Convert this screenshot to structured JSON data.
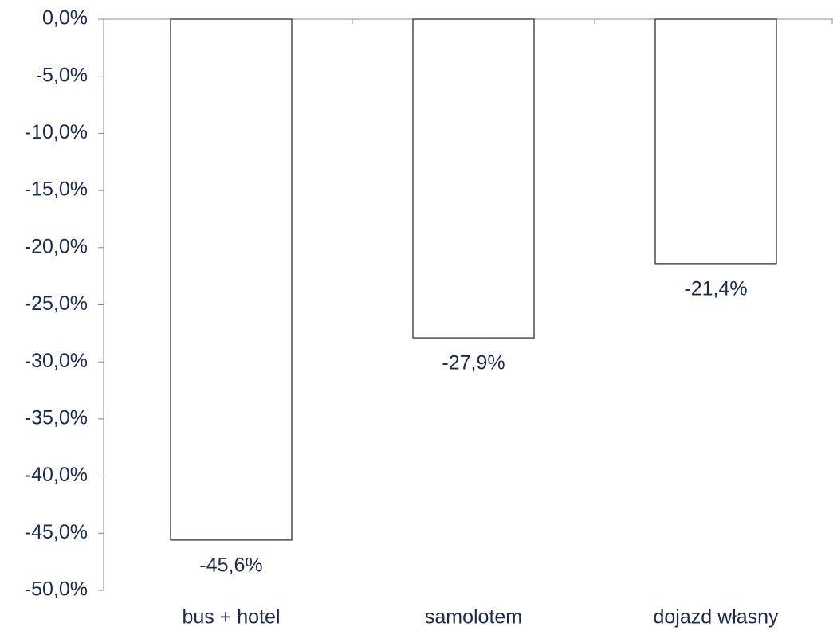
{
  "chart_data": {
    "type": "bar",
    "categories": [
      "bus + hotel",
      "samolotem",
      "dojazd własny"
    ],
    "values": [
      -45.6,
      -27.9,
      -21.4
    ],
    "value_labels": [
      "-45,6%",
      "-27,9%",
      "-21,4%"
    ],
    "color": "#ffffff",
    "ylim": [
      -50,
      0
    ],
    "yticks": [
      {
        "value": 0,
        "label": "0,0%"
      },
      {
        "value": -5,
        "label": "-5,0%"
      },
      {
        "value": -10,
        "label": "-10,0%"
      },
      {
        "value": -15,
        "label": "-15,0%"
      },
      {
        "value": -20,
        "label": "-20,0%"
      },
      {
        "value": -25,
        "label": "-25,0%"
      },
      {
        "value": -30,
        "label": "-30,0%"
      },
      {
        "value": -35,
        "label": "-35,0%"
      },
      {
        "value": -40,
        "label": "-40,0%"
      },
      {
        "value": -45,
        "label": "-45,0%"
      },
      {
        "value": -50,
        "label": "-50,0%"
      }
    ],
    "grid": false
  }
}
